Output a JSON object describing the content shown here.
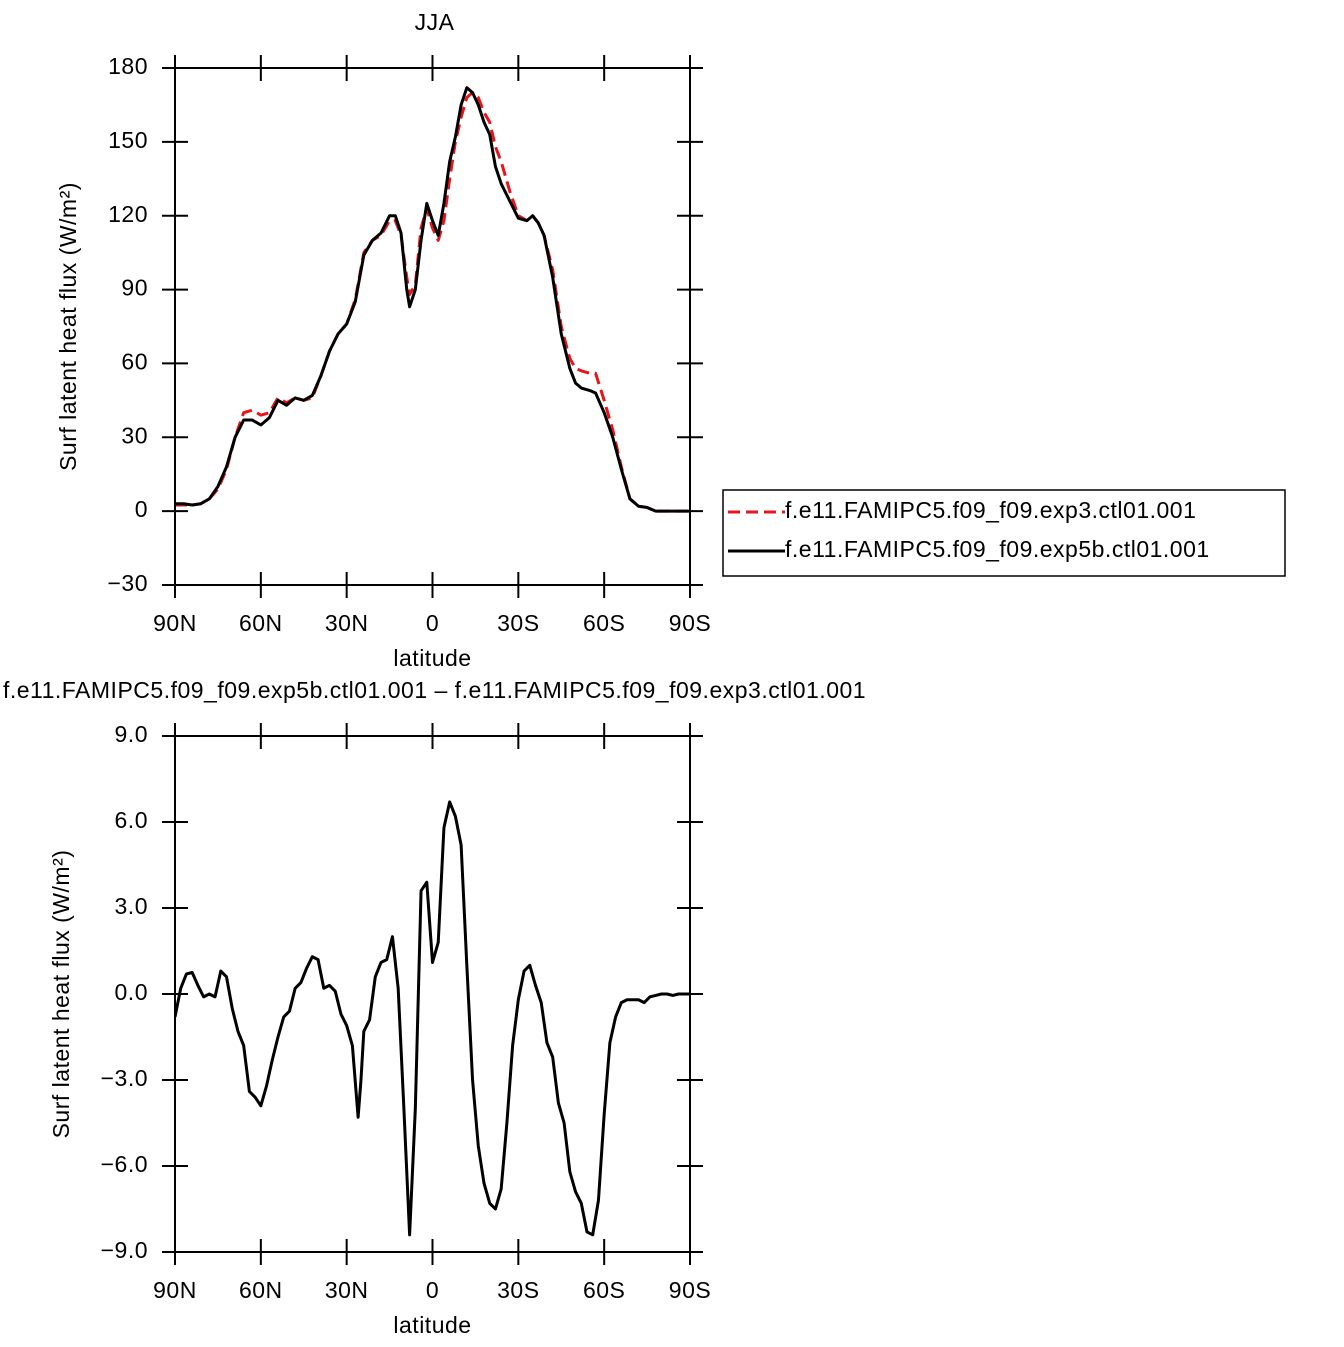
{
  "chart_data": [
    {
      "type": "line",
      "title": "JJA",
      "xlabel": "latitude",
      "ylabel": "Surf latent heat flux (W/m²)",
      "xlim": [
        90,
        -90
      ],
      "xticks": [
        {
          "value": 90,
          "label": "90N"
        },
        {
          "value": 60,
          "label": "60N"
        },
        {
          "value": 30,
          "label": "30N"
        },
        0,
        {
          "value": -30,
          "label": "30S"
        },
        {
          "value": -60,
          "label": "60S"
        },
        {
          "value": -90,
          "label": "90S"
        }
      ],
      "ylim": [
        -30,
        180
      ],
      "yticks": [
        {
          "value": -30,
          "label": "−30"
        },
        0,
        30,
        60,
        90,
        120,
        150,
        180
      ],
      "legend": "right",
      "x": [
        90,
        87,
        84,
        81,
        78,
        75,
        72,
        69,
        66,
        63,
        60,
        57,
        54,
        51,
        48,
        45,
        42,
        39,
        36,
        33,
        30,
        27,
        24,
        21,
        18,
        15,
        13,
        11,
        9,
        8,
        6,
        4,
        2,
        0,
        -2,
        -4,
        -6,
        -8,
        -10,
        -12,
        -14,
        -16,
        -18,
        -20,
        -22,
        -24,
        -27,
        -30,
        -33,
        -35,
        -37,
        -39,
        -42,
        -45,
        -48,
        -50,
        -52,
        -55,
        -57,
        -60,
        -63,
        -66,
        -69,
        -72,
        -75,
        -78,
        -81,
        -84,
        -87,
        -90
      ],
      "series": [
        {
          "name": "f.e11.FAMIPC5.f09_f09.exp3.ctl01.001",
          "color": "#e8141a",
          "dash": true,
          "values": [
            2.5,
            2.5,
            2.5,
            3,
            5,
            9,
            17,
            30,
            40,
            41,
            39,
            40,
            46,
            44,
            46,
            45,
            46,
            55,
            65,
            72,
            76,
            86,
            105,
            110,
            112,
            118,
            118,
            112,
            95,
            88,
            92,
            115,
            123,
            115,
            110,
            118,
            135,
            150,
            160,
            168,
            170,
            168,
            162,
            158,
            148,
            142,
            130,
            120,
            118,
            120,
            117,
            112,
            98,
            75,
            62,
            58,
            57,
            56,
            56,
            45,
            33,
            18,
            5,
            2,
            1.5,
            0,
            0,
            0,
            0,
            0
          ]
        },
        {
          "name": "f.e11.FAMIPC5.f09_f09.exp5b.ctl01.001",
          "color": "#000000",
          "dash": false,
          "values": [
            3,
            3,
            2.5,
            3,
            5,
            10,
            18,
            30,
            37,
            37,
            35,
            38,
            45,
            43,
            46,
            45,
            47,
            55,
            65,
            72,
            76,
            85,
            104,
            110,
            113,
            120,
            120,
            113,
            90,
            83,
            90,
            110,
            125,
            118,
            112,
            125,
            142,
            152,
            165,
            172,
            170,
            165,
            158,
            153,
            140,
            133,
            126,
            119,
            118,
            120,
            117,
            112,
            95,
            72,
            58,
            52,
            50,
            49,
            48,
            40,
            30,
            17,
            5,
            2,
            1.5,
            0,
            0,
            0,
            0,
            0
          ]
        }
      ]
    },
    {
      "type": "line",
      "title": "f.e11.FAMIPC5.f09_f09.exp5b.ctl01.001 – f.e11.FAMIPC5.f09_f09.exp3.ctl01.001",
      "xlabel": "latitude",
      "ylabel": "Surf latent heat flux (W/m²)",
      "xlim": [
        90,
        -90
      ],
      "xticks": [
        {
          "value": 90,
          "label": "90N"
        },
        {
          "value": 60,
          "label": "60N"
        },
        {
          "value": 30,
          "label": "30N"
        },
        0,
        {
          "value": -30,
          "label": "30S"
        },
        {
          "value": -60,
          "label": "60S"
        },
        {
          "value": -90,
          "label": "90S"
        }
      ],
      "ylim": [
        -9,
        9
      ],
      "yticks": [
        {
          "value": -9,
          "label": "−9.0"
        },
        {
          "value": -6,
          "label": "−6.0"
        },
        {
          "value": -3,
          "label": "−3.0"
        },
        {
          "value": 0,
          "label": "0.0"
        },
        {
          "value": 3,
          "label": "3.0"
        },
        {
          "value": 6,
          "label": "6.0"
        },
        {
          "value": 9,
          "label": "9.0"
        }
      ],
      "x": [
        90,
        88,
        86,
        84,
        82,
        80,
        78,
        76,
        74,
        72,
        70,
        68,
        66,
        64,
        62,
        60,
        58,
        56,
        54,
        52,
        50,
        48,
        46,
        44,
        42,
        40,
        38,
        36,
        34,
        32,
        30,
        28,
        26,
        25,
        24,
        22,
        20,
        18,
        16,
        14,
        12,
        10,
        8,
        6,
        4,
        2,
        0,
        -2,
        -4,
        -6,
        -8,
        -10,
        -12,
        -14,
        -16,
        -18,
        -20,
        -22,
        -24,
        -26,
        -28,
        -30,
        -32,
        -34,
        -36,
        -38,
        -40,
        -42,
        -44,
        -46,
        -48,
        -50,
        -52,
        -54,
        -56,
        -58,
        -60,
        -62,
        -64,
        -66,
        -68,
        -70,
        -72,
        -74,
        -76,
        -78,
        -80,
        -82,
        -84,
        -86,
        -88,
        -90
      ],
      "series": [
        {
          "name": null,
          "color": "#000000",
          "dash": false,
          "values": [
            -0.8,
            0.2,
            0.7,
            0.75,
            0.3,
            -0.1,
            0,
            -0.1,
            0.8,
            0.6,
            -0.5,
            -1.3,
            -1.8,
            -3.4,
            -3.6,
            -3.9,
            -3.2,
            -2.3,
            -1.5,
            -0.8,
            -0.6,
            0.2,
            0.4,
            0.9,
            1.3,
            1.2,
            0.2,
            0.3,
            0.1,
            -0.7,
            -1.1,
            -1.8,
            -4.3,
            -3.0,
            -1.3,
            -0.9,
            0.6,
            1.1,
            1.2,
            2.0,
            0.2,
            -4.0,
            -8.4,
            -4.0,
            3.6,
            3.9,
            1.1,
            1.8,
            5.8,
            6.7,
            6.2,
            5.2,
            1.0,
            -3.0,
            -5.3,
            -6.6,
            -7.3,
            -7.5,
            -6.8,
            -4.5,
            -1.8,
            -0.2,
            0.8,
            1.0,
            0.3,
            -0.3,
            -1.7,
            -2.2,
            -3.8,
            -4.5,
            -6.2,
            -6.9,
            -7.3,
            -8.3,
            -8.4,
            -7.2,
            -4.2,
            -1.7,
            -0.8,
            -0.3,
            -0.2,
            -0.2,
            -0.2,
            -0.3,
            -0.1,
            -0.05,
            0,
            0,
            -0.05,
            0,
            0,
            0
          ]
        }
      ]
    }
  ]
}
